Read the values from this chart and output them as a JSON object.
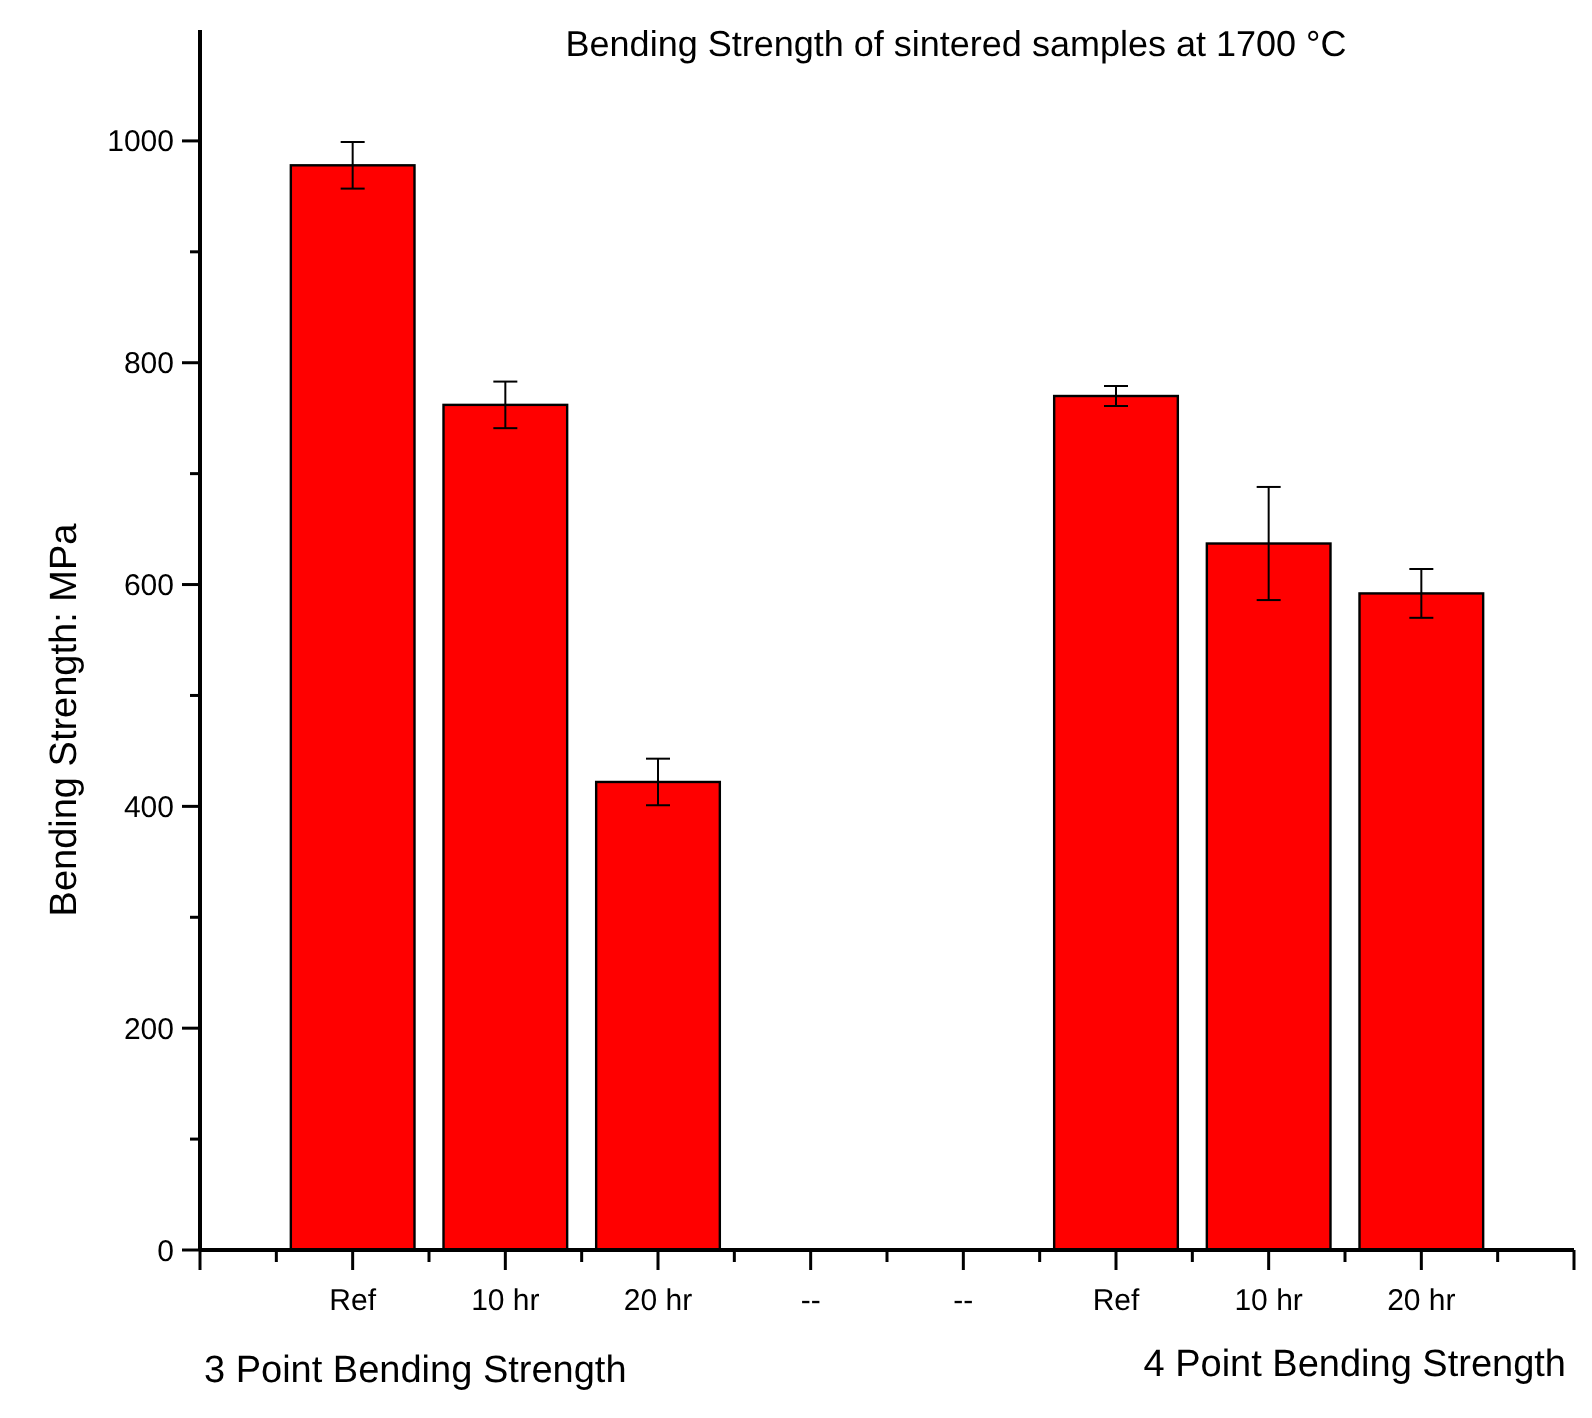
{
  "chart_data": {
    "type": "bar",
    "title": "Bending Strength of sintered samples at 1700 °C",
    "ylabel": "Bending Strength: MPa",
    "categories": [
      "Ref",
      "10 hr",
      "20 hr",
      "--",
      "--",
      "Ref",
      "10 hr",
      "20 hr"
    ],
    "values": [
      978,
      762,
      422,
      null,
      null,
      770,
      637,
      592
    ],
    "errors": [
      21,
      21,
      21,
      null,
      null,
      9,
      51,
      22
    ],
    "color": "#ff0000",
    "ylim": [
      0,
      1100
    ],
    "yticks": [
      0,
      {
        "value": 100,
        "label": null
      },
      200,
      {
        "value": 300,
        "label": null
      },
      400,
      {
        "value": 500,
        "label": null
      },
      600,
      {
        "value": 700,
        "label": null
      },
      800,
      {
        "value": 900,
        "label": null
      },
      1000
    ],
    "annotations": [
      "3 Point Bending Strength",
      "4 Point Bending Strength"
    ],
    "grid": false
  }
}
